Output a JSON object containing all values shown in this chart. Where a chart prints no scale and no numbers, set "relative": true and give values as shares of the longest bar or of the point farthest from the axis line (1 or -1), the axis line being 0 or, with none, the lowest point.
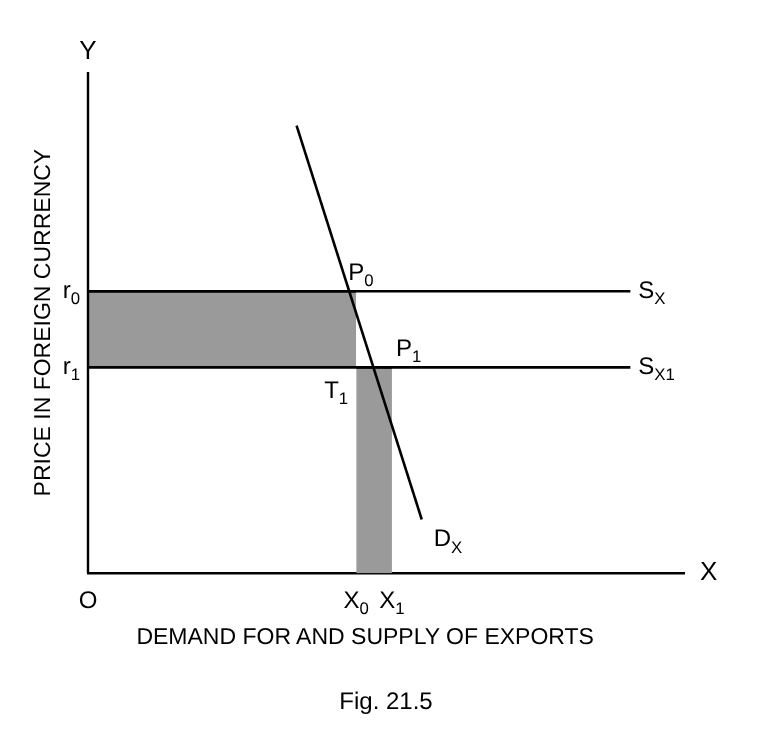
{
  "chart_data": {
    "type": "line",
    "relative": true,
    "xlabel": "DEMAND FOR AND SUPPLY OF EXPORTS",
    "ylabel": "PRICE IN FOREIGN CURRENCY",
    "xlim": [
      0,
      1
    ],
    "xticks": [
      {
        "value": 0,
        "label": "O"
      },
      {
        "value": 0.45,
        "label": "X$_{0}$"
      },
      {
        "value": 0.51,
        "label": "X$_{1}$"
      }
    ],
    "series": [
      {
        "name": "D$_{X}$",
        "color": "#000000",
        "x": [
          0.35,
          0.56
        ],
        "values": [
          1,
          0.12
        ]
      },
      {
        "name": "S$_{X}$",
        "color": "#000000",
        "x": [
          0,
          0.91
        ],
        "values": [
          0.63,
          0.63
        ]
      },
      {
        "name": "S$_{X1}$",
        "color": "#000000",
        "x": [
          0,
          0.91
        ],
        "values": [
          0.46,
          0.46
        ]
      },
      {
        "type": "area",
        "color": "#9a9a9a",
        "x": [
          0,
          0.45
        ],
        "values": [
          0.63,
          0.63
        ]
      },
      {
        "type": "area",
        "color": "#9a9a9a",
        "x": [
          0.45,
          0.51
        ],
        "values": [
          0.46,
          0.46
        ]
      }
    ],
    "annotations": [
      {
        "text": "P$_{0}$",
        "x": 0.45,
        "y": 0.63
      },
      {
        "text": "P$_{1}$",
        "x": 0.51,
        "y": 0.46
      },
      {
        "text": "T$_{1}$",
        "x": 0.45,
        "y": 0.46
      },
      {
        "text": "r$_{0}$",
        "x": 0,
        "y": 0.63
      },
      {
        "text": "r$_{1}$",
        "x": 0,
        "y": 0.46
      },
      "Y",
      "X",
      "Fig. 21.5"
    ],
    "marker": "none"
  }
}
